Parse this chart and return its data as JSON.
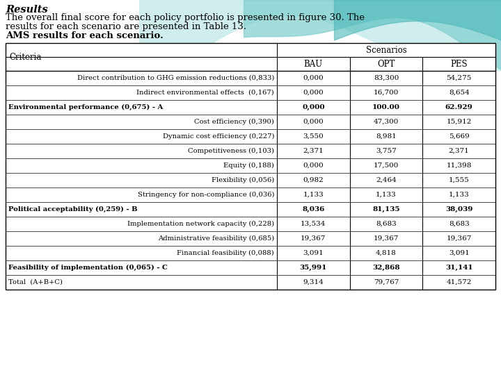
{
  "title_italic": "Results",
  "subtitle_line1": "The overall final score for each policy portfolio is presented in figure 30. The",
  "subtitle_line2": "results for each scenario are presented in Table 13.",
  "subtitle_line3": "AMS results for each scenario.",
  "table_headers": [
    "Criteria",
    "BAU",
    "OPT",
    "PES"
  ],
  "scenarios_header": "Scenarios",
  "rows": [
    {
      "label": "Direct contribution to GHG emission reductions (0,833)",
      "indent": true,
      "bold": false,
      "bau": "0,000",
      "opt": "83,300",
      "pes": "54,275"
    },
    {
      "label": "Indirect environmental effects  (0,167)",
      "indent": true,
      "bold": false,
      "bau": "0,000",
      "opt": "16,700",
      "pes": "8,654"
    },
    {
      "label": "Environmental performance (0,675) - A",
      "indent": false,
      "bold": true,
      "bau": "0,000",
      "opt": "100.00",
      "pes": "62.929"
    },
    {
      "label": "Cost efficiency (0,390)",
      "indent": true,
      "bold": false,
      "bau": "0,000",
      "opt": "47,300",
      "pes": "15,912"
    },
    {
      "label": "Dynamic cost efficiency (0,227)",
      "indent": true,
      "bold": false,
      "bau": "3,550",
      "opt": "8,981",
      "pes": "5,669"
    },
    {
      "label": "Competitiveness (0,103)",
      "indent": true,
      "bold": false,
      "bau": "2,371",
      "opt": "3,757",
      "pes": "2,371"
    },
    {
      "label": "Equity (0,188)",
      "indent": true,
      "bold": false,
      "bau": "0,000",
      "opt": "17,500",
      "pes": "11,398"
    },
    {
      "label": "Flexibility (0,056)",
      "indent": true,
      "bold": false,
      "bau": "0,982",
      "opt": "2,464",
      "pes": "1,555"
    },
    {
      "label": "Stringency for non-compliance (0,036)",
      "indent": true,
      "bold": false,
      "bau": "1,133",
      "opt": "1,133",
      "pes": "1,133"
    },
    {
      "label": "Political acceptability (0,259) - B",
      "indent": false,
      "bold": true,
      "bau": "8,036",
      "opt": "81,135",
      "pes": "38,039"
    },
    {
      "label": "Implementation network capacity (0,228)",
      "indent": true,
      "bold": false,
      "bau": "13,534",
      "opt": "8,683",
      "pes": "8,683"
    },
    {
      "label": "Administrative feasibility (0,685)",
      "indent": true,
      "bold": false,
      "bau": "19,367",
      "opt": "19,367",
      "pes": "19,367"
    },
    {
      "label": "Financial feasibility (0,088)",
      "indent": true,
      "bold": false,
      "bau": "3,091",
      "opt": "4,818",
      "pes": "3,091"
    },
    {
      "label": "Feasibility of implementation (0,065) - C",
      "indent": false,
      "bold": true,
      "bau": "35,991",
      "opt": "32,868",
      "pes": "31,141"
    },
    {
      "label": "Total  (A+B+C)",
      "indent": false,
      "bold": false,
      "bau": "9,314",
      "opt": "79,767",
      "pes": "41,572"
    }
  ],
  "bg_color": "#ffffff",
  "text_color": "#000000",
  "wave_color1": "#c8ecec",
  "wave_color2": "#7ecece",
  "wave_color3": "#4ab8b8"
}
